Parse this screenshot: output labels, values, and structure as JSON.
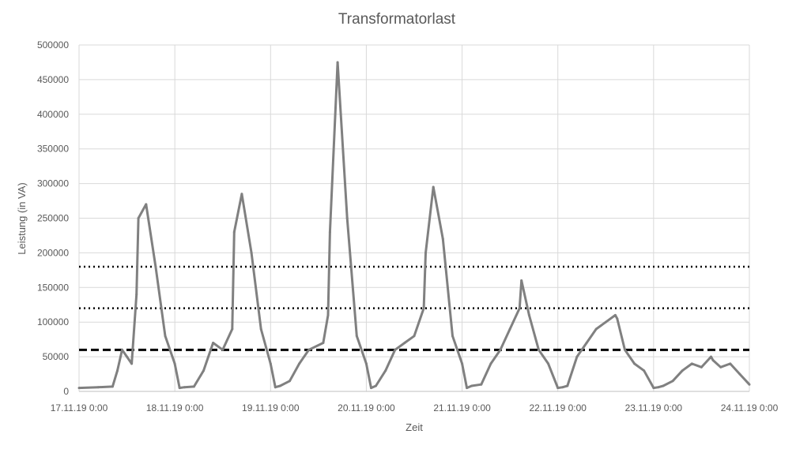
{
  "chart_data": {
    "type": "line",
    "title": "Transformatorlast",
    "xlabel": "Zeit",
    "ylabel": "Leistung (in VA)",
    "ylim": [
      0,
      500000
    ],
    "xlim": [
      "17.11.19 0:00",
      "24.11.19 0:00"
    ],
    "y_ticks": [
      "0",
      "50000",
      "100000",
      "150000",
      "200000",
      "250000",
      "300000",
      "350000",
      "400000",
      "450000",
      "500000"
    ],
    "x_ticks": [
      "17.11.19 0:00",
      "18.11.19 0:00",
      "19.11.19 0:00",
      "20.11.19 0:00",
      "21.11.19 0:00",
      "22.11.19 0:00",
      "23.11.19 0:00",
      "24.11.19 0:00"
    ],
    "grid": true,
    "legend": "none",
    "series": [
      {
        "color": "#808080",
        "x_days": [
          0,
          0.2,
          0.35,
          0.4,
          0.45,
          0.5,
          0.55,
          0.6,
          0.62,
          0.7,
          0.8,
          0.9,
          1.0,
          1.05,
          1.1,
          1.2,
          1.3,
          1.4,
          1.5,
          1.6,
          1.62,
          1.7,
          1.8,
          1.9,
          2.0,
          2.05,
          2.1,
          2.2,
          2.3,
          2.4,
          2.55,
          2.6,
          2.62,
          2.7,
          2.8,
          2.9,
          3.0,
          3.05,
          3.1,
          3.2,
          3.3,
          3.4,
          3.5,
          3.6,
          3.62,
          3.7,
          3.8,
          3.9,
          4.0,
          4.05,
          4.1,
          4.2,
          4.3,
          4.4,
          4.5,
          4.6,
          4.62,
          4.7,
          4.8,
          4.9,
          5.0,
          5.05,
          5.1,
          5.2,
          5.3,
          5.4,
          5.5,
          5.6,
          5.62,
          5.7,
          5.8,
          5.9,
          6.0,
          6.05,
          6.1,
          6.2,
          6.3,
          6.4,
          6.5,
          6.6,
          6.62,
          6.7,
          6.8,
          6.9,
          7.0
        ],
        "values": [
          5000,
          6000,
          7000,
          30000,
          60000,
          50000,
          40000,
          140000,
          250000,
          270000,
          180000,
          80000,
          40000,
          5000,
          6000,
          7000,
          30000,
          70000,
          60000,
          90000,
          230000,
          285000,
          200000,
          90000,
          40000,
          6000,
          8000,
          15000,
          40000,
          60000,
          70000,
          110000,
          230000,
          475000,
          250000,
          80000,
          40000,
          5000,
          8000,
          30000,
          60000,
          70000,
          80000,
          120000,
          200000,
          295000,
          220000,
          80000,
          40000,
          5000,
          8000,
          10000,
          40000,
          60000,
          90000,
          120000,
          160000,
          110000,
          60000,
          40000,
          5000,
          6000,
          8000,
          50000,
          70000,
          90000,
          100000,
          110000,
          105000,
          60000,
          40000,
          30000,
          5000,
          6000,
          8000,
          15000,
          30000,
          40000,
          35000,
          50000,
          45000,
          35000,
          40000,
          25000,
          10000
        ]
      }
    ],
    "reference_lines": [
      {
        "y": 180000,
        "style": "dotted",
        "color": "#000000"
      },
      {
        "y": 120000,
        "style": "dotted",
        "color": "#000000"
      },
      {
        "y": 60000,
        "style": "dashed",
        "color": "#000000"
      }
    ]
  }
}
